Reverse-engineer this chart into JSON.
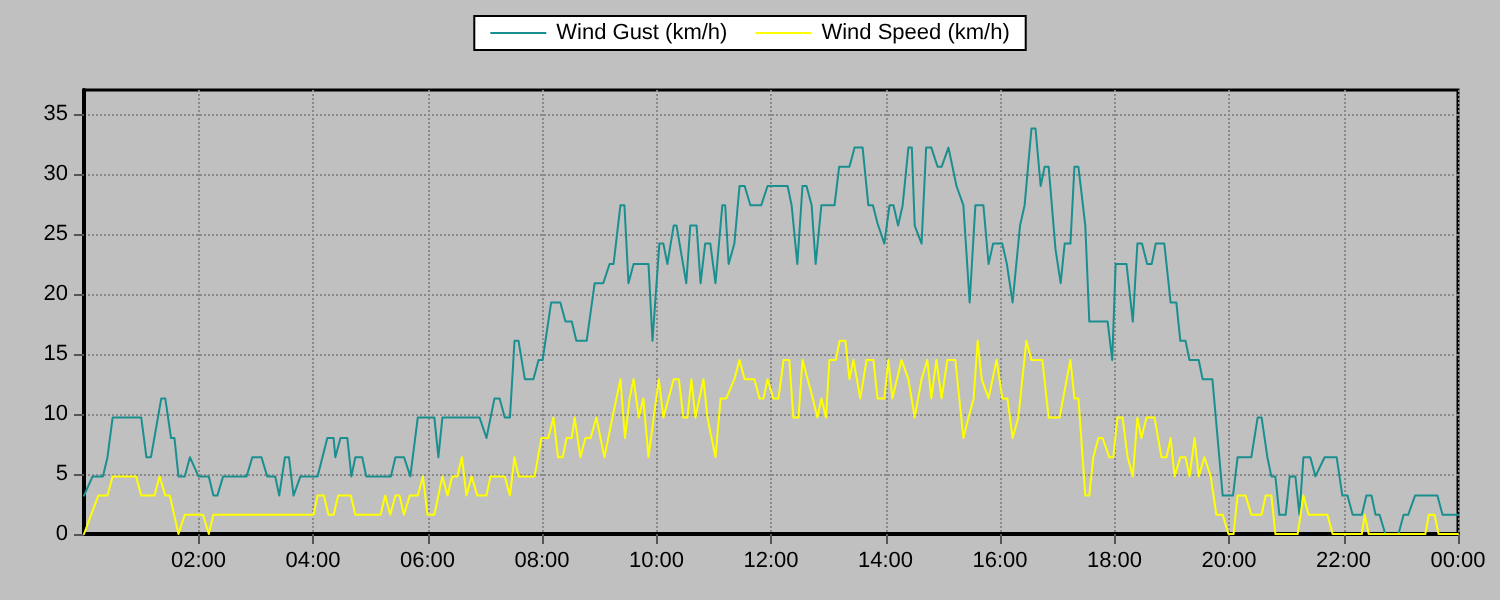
{
  "chart_data": {
    "type": "line",
    "legend": "top",
    "grid": true,
    "marker": "none",
    "line_style": "solid",
    "xlim": [
      0,
      24
    ],
    "xticks": [
      {
        "value": 2,
        "label": "02:00"
      },
      {
        "value": 4,
        "label": "04:00"
      },
      {
        "value": 6,
        "label": "06:00"
      },
      {
        "value": 8,
        "label": "08:00"
      },
      {
        "value": 10,
        "label": "10:00"
      },
      {
        "value": 12,
        "label": "12:00"
      },
      {
        "value": 14,
        "label": "14:00"
      },
      {
        "value": 16,
        "label": "16:00"
      },
      {
        "value": 18,
        "label": "18:00"
      },
      {
        "value": 20,
        "label": "20:00"
      },
      {
        "value": 22,
        "label": "22:00"
      },
      {
        "value": 24,
        "label": "00:00"
      }
    ],
    "ylim": [
      0,
      37
    ],
    "yticks": [
      0,
      5,
      10,
      15,
      20,
      25,
      30,
      35
    ],
    "series": [
      {
        "name": "Wind Gust (km/h)",
        "color": "#1a8f8f",
        "x": [
          0,
          0.15,
          0.33,
          0.41,
          0.5,
          1.0,
          1.09,
          1.17,
          1.35,
          1.42,
          1.52,
          1.58,
          1.65,
          1.76,
          1.85,
          2.0,
          2.18,
          2.26,
          2.33,
          2.43,
          2.84,
          2.94,
          3.1,
          3.2,
          3.34,
          3.41,
          3.51,
          3.58,
          3.66,
          3.78,
          4.08,
          4.25,
          4.36,
          4.39,
          4.48,
          4.6,
          4.67,
          4.74,
          4.86,
          4.93,
          5.36,
          5.44,
          5.59,
          5.7,
          5.83,
          6.12,
          6.19,
          6.26,
          6.91,
          7.03,
          7.17,
          7.26,
          7.35,
          7.44,
          7.52,
          7.59,
          7.7,
          7.85,
          7.94,
          8.01,
          8.16,
          8.32,
          8.41,
          8.52,
          8.6,
          8.78,
          8.92,
          9.07,
          9.18,
          9.25,
          9.37,
          9.44,
          9.51,
          9.6,
          9.86,
          9.93,
          10.05,
          10.12,
          10.19,
          10.3,
          10.35,
          10.52,
          10.59,
          10.7,
          10.77,
          10.85,
          10.94,
          11.03,
          11.15,
          11.2,
          11.26,
          11.36,
          11.45,
          11.54,
          11.64,
          11.83,
          11.94,
          12.29,
          12.36,
          12.46,
          12.55,
          12.62,
          12.71,
          12.78,
          12.88,
          13.11,
          13.19,
          13.37,
          13.46,
          13.6,
          13.7,
          13.78,
          13.86,
          13.98,
          14.07,
          14.14,
          14.22,
          14.3,
          14.4,
          14.46,
          14.51,
          14.63,
          14.71,
          14.8,
          14.91,
          14.98,
          15.1,
          15.17,
          15.24,
          15.36,
          15.47,
          15.57,
          15.71,
          15.8,
          15.88,
          16.04,
          16.12,
          16.22,
          16.35,
          16.43,
          16.55,
          16.62,
          16.71,
          16.78,
          16.85,
          16.97,
          17.06,
          17.13,
          17.23,
          17.3,
          17.37,
          17.49,
          17.56,
          17.88,
          17.96,
          18.02,
          18.21,
          18.32,
          18.4,
          18.48,
          18.57,
          18.65,
          18.72,
          18.87,
          18.98,
          19.08,
          19.15,
          19.24,
          19.31,
          19.47,
          19.54,
          19.71,
          19.89,
          20.07,
          20.15,
          20.39,
          20.5,
          20.57,
          20.67,
          20.74,
          20.81,
          20.88,
          20.99,
          21.06,
          21.16,
          21.23,
          21.3,
          21.42,
          21.51,
          21.67,
          21.88,
          21.98,
          22.07,
          22.16,
          22.32,
          22.4,
          22.49,
          22.56,
          22.63,
          22.73,
          22.96,
          23.05,
          23.13,
          23.25,
          23.64,
          23.73,
          24
        ],
        "values": [
          3.2,
          4.8,
          4.8,
          6.4,
          9.7,
          9.7,
          6.4,
          6.4,
          11.3,
          11.3,
          8.0,
          8.0,
          4.8,
          4.8,
          6.4,
          4.8,
          4.8,
          3.2,
          3.2,
          4.8,
          4.8,
          6.4,
          6.4,
          4.8,
          4.8,
          3.2,
          6.4,
          6.4,
          3.2,
          4.8,
          4.8,
          8.0,
          8.0,
          6.4,
          8.0,
          8.0,
          4.8,
          6.4,
          6.4,
          4.8,
          4.8,
          6.4,
          6.4,
          4.8,
          9.7,
          9.7,
          6.4,
          9.7,
          9.7,
          8.0,
          11.3,
          11.3,
          9.7,
          9.7,
          16.1,
          16.1,
          12.9,
          12.9,
          14.5,
          14.5,
          19.3,
          19.3,
          17.7,
          17.7,
          16.1,
          16.1,
          20.9,
          20.9,
          22.5,
          22.5,
          27.4,
          27.4,
          20.9,
          22.5,
          22.5,
          16.1,
          24.2,
          24.2,
          22.5,
          25.7,
          25.7,
          20.9,
          25.7,
          25.7,
          20.9,
          24.2,
          24.2,
          20.9,
          27.4,
          27.4,
          22.5,
          24.2,
          29.0,
          29.0,
          27.4,
          27.4,
          29.0,
          29.0,
          27.4,
          22.5,
          29.0,
          29.0,
          27.4,
          22.5,
          27.4,
          27.4,
          30.6,
          30.6,
          32.2,
          32.2,
          27.4,
          27.4,
          25.9,
          24.2,
          27.4,
          27.4,
          25.7,
          27.4,
          32.2,
          32.2,
          25.7,
          24.2,
          32.2,
          32.2,
          30.6,
          30.6,
          32.2,
          30.6,
          29.0,
          27.4,
          19.3,
          27.4,
          27.4,
          22.5,
          24.2,
          24.2,
          22.5,
          19.3,
          25.7,
          27.4,
          33.8,
          33.8,
          29.0,
          30.6,
          30.6,
          23.7,
          20.9,
          24.2,
          24.2,
          30.6,
          30.6,
          25.7,
          17.7,
          17.7,
          14.5,
          22.5,
          22.5,
          17.7,
          24.2,
          24.2,
          22.5,
          22.5,
          24.2,
          24.2,
          19.3,
          19.3,
          16.1,
          16.1,
          14.5,
          14.5,
          12.9,
          12.9,
          3.2,
          3.2,
          6.4,
          6.4,
          9.7,
          9.7,
          6.4,
          4.8,
          4.8,
          1.6,
          1.6,
          4.8,
          4.8,
          1.6,
          6.4,
          6.4,
          4.8,
          6.4,
          6.4,
          3.2,
          3.2,
          1.6,
          1.6,
          3.2,
          3.2,
          1.6,
          1.6,
          0,
          0,
          1.6,
          1.6,
          3.2,
          3.2,
          1.6,
          1.6
        ]
      },
      {
        "name": "Wind Speed (km/h)",
        "color": "#ffff00",
        "x": [
          0,
          0.25,
          0.41,
          0.5,
          0.91,
          1.0,
          1.23,
          1.32,
          1.42,
          1.5,
          1.65,
          1.76,
          2.08,
          2.18,
          2.26,
          4.01,
          4.08,
          4.19,
          4.27,
          4.36,
          4.44,
          4.66,
          4.74,
          5.18,
          5.26,
          5.35,
          5.44,
          5.51,
          5.59,
          5.69,
          5.83,
          5.92,
          6.0,
          6.12,
          6.19,
          6.26,
          6.35,
          6.43,
          6.52,
          6.6,
          6.68,
          6.77,
          6.87,
          7.03,
          7.1,
          7.35,
          7.44,
          7.52,
          7.59,
          7.87,
          7.99,
          8.11,
          8.2,
          8.28,
          8.36,
          8.43,
          8.52,
          8.57,
          8.67,
          8.76,
          8.85,
          8.95,
          9.09,
          9.23,
          9.37,
          9.45,
          9.53,
          9.6,
          9.69,
          9.77,
          9.86,
          10.04,
          10.12,
          10.21,
          10.3,
          10.39,
          10.47,
          10.54,
          10.61,
          10.68,
          10.75,
          10.82,
          10.89,
          11.03,
          11.12,
          11.22,
          11.36,
          11.45,
          11.54,
          11.71,
          11.8,
          11.87,
          11.94,
          12.04,
          12.13,
          12.22,
          12.32,
          12.39,
          12.48,
          12.55,
          12.64,
          12.73,
          12.81,
          12.88,
          12.96,
          13.02,
          13.13,
          13.2,
          13.3,
          13.37,
          13.44,
          13.56,
          13.67,
          13.79,
          13.86,
          13.98,
          14.05,
          14.12,
          14.28,
          14.4,
          14.51,
          14.63,
          14.73,
          14.8,
          14.89,
          14.98,
          15.08,
          15.22,
          15.36,
          15.45,
          15.54,
          15.61,
          15.68,
          15.8,
          15.94,
          16.04,
          16.13,
          16.22,
          16.32,
          16.46,
          16.55,
          16.74,
          16.85,
          17.04,
          17.23,
          17.3,
          17.37,
          17.49,
          17.56,
          17.63,
          17.72,
          17.79,
          17.91,
          17.98,
          18.05,
          18.14,
          18.23,
          18.32,
          18.4,
          18.47,
          18.56,
          18.7,
          18.82,
          18.91,
          18.98,
          19.05,
          19.15,
          19.24,
          19.31,
          19.4,
          19.47,
          19.57,
          19.68,
          19.78,
          19.89,
          19.99,
          20.08,
          20.15,
          20.29,
          20.39,
          20.57,
          20.64,
          20.74,
          20.81,
          21.2,
          21.3,
          21.39,
          21.72,
          21.81,
          22.32,
          22.37,
          22.44,
          23.43,
          23.49,
          23.59,
          23.66,
          24
        ],
        "values": [
          0,
          3.2,
          3.2,
          4.8,
          4.8,
          3.2,
          3.2,
          4.8,
          3.2,
          3.2,
          0,
          1.6,
          1.6,
          0,
          1.6,
          1.6,
          3.2,
          3.2,
          1.6,
          1.6,
          3.2,
          3.2,
          1.6,
          1.6,
          3.2,
          1.6,
          3.2,
          3.2,
          1.6,
          3.2,
          3.2,
          4.8,
          1.6,
          1.6,
          3.2,
          4.8,
          3.2,
          4.8,
          4.8,
          6.4,
          3.2,
          4.8,
          3.2,
          3.2,
          4.8,
          4.8,
          3.2,
          6.4,
          4.8,
          4.8,
          8.0,
          8.0,
          9.7,
          6.4,
          6.4,
          8.0,
          8.0,
          9.7,
          6.4,
          8.0,
          8.0,
          9.7,
          6.4,
          9.7,
          12.9,
          8.0,
          11.3,
          12.9,
          9.7,
          11.3,
          6.4,
          12.9,
          9.7,
          11.3,
          12.9,
          12.9,
          9.7,
          9.7,
          12.9,
          9.7,
          11.3,
          12.9,
          9.7,
          6.4,
          11.3,
          11.3,
          12.9,
          14.5,
          12.9,
          12.9,
          11.3,
          11.3,
          12.9,
          11.3,
          11.3,
          14.5,
          14.5,
          9.7,
          9.7,
          14.5,
          12.9,
          11.3,
          9.7,
          11.3,
          9.7,
          14.5,
          14.5,
          16.1,
          16.1,
          12.9,
          14.5,
          11.3,
          14.5,
          14.5,
          11.3,
          11.3,
          14.5,
          11.3,
          14.5,
          12.9,
          9.7,
          12.9,
          14.5,
          11.3,
          14.5,
          11.3,
          14.5,
          14.5,
          8.0,
          9.7,
          11.3,
          16.1,
          12.9,
          11.3,
          14.5,
          11.3,
          11.3,
          8.0,
          9.7,
          16.1,
          14.5,
          14.5,
          9.7,
          9.7,
          14.5,
          11.3,
          11.3,
          3.2,
          3.2,
          6.4,
          8.0,
          8.0,
          6.4,
          6.4,
          9.7,
          9.7,
          6.4,
          4.8,
          9.7,
          8.0,
          9.7,
          9.7,
          6.4,
          6.4,
          8.0,
          4.8,
          6.4,
          6.4,
          4.8,
          8.0,
          4.8,
          6.4,
          4.8,
          1.6,
          1.6,
          0,
          0,
          3.2,
          3.2,
          1.6,
          1.6,
          3.2,
          3.2,
          0,
          0,
          3.2,
          1.6,
          1.6,
          0,
          0,
          1.6,
          0,
          0,
          1.6,
          1.6,
          0,
          0
        ]
      }
    ]
  }
}
